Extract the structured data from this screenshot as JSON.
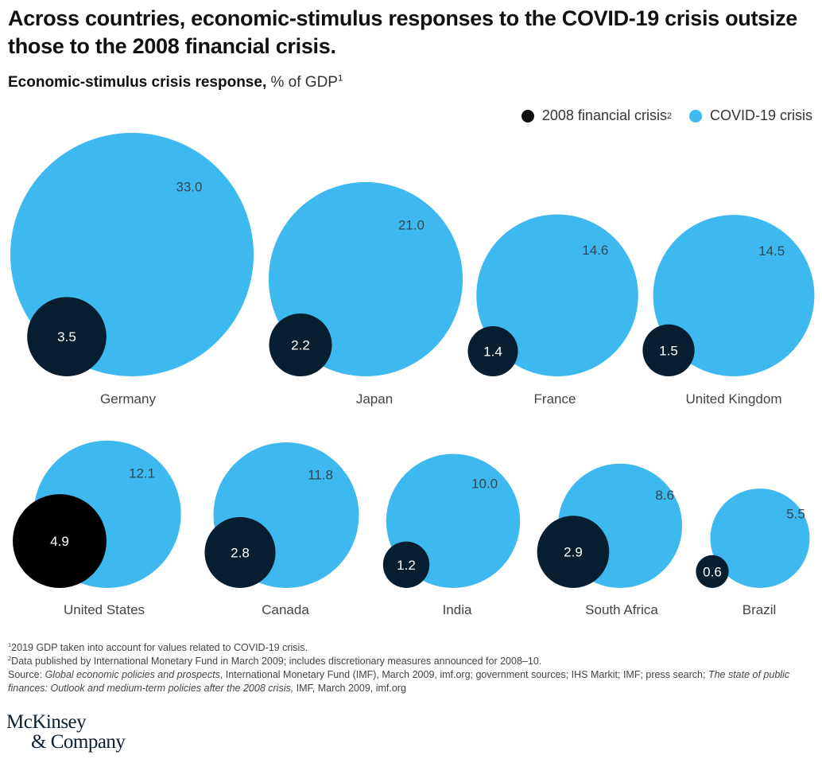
{
  "title": "Across countries, economic-stimulus responses to the COVID-19 crisis outsize those to the 2008 financial crisis.",
  "subtitle": {
    "bold": "Economic-stimulus crisis response,",
    "unit": " % of GDP",
    "sup": "1"
  },
  "legend": [
    {
      "label": "2008 financial crisis",
      "sup": "2",
      "color": "#111111"
    },
    {
      "label": "COVID-19 crisis",
      "sup": "",
      "color": "#3DB9EF"
    }
  ],
  "colors": {
    "covid": "#3DB9EF",
    "crisis2008": "#061E2F",
    "crisis2008_highlight": "#000000",
    "value_text_covid": "#2f4858",
    "value_text_2008": "#ffffff",
    "country_text": "#444444"
  },
  "chart_data": {
    "type": "bubble",
    "title": "Economic-stimulus crisis response, % of GDP",
    "unit": "% of GDP",
    "legend_position": "top-right",
    "series": [
      {
        "name": "2008 financial crisis",
        "key": "crisis2008"
      },
      {
        "name": "COVID-19 crisis",
        "key": "covid"
      }
    ],
    "countries": [
      {
        "name": "Germany",
        "covid": 33.0,
        "crisis2008": 3.5,
        "covid_label": "33.0",
        "crisis2008_label": "3.5"
      },
      {
        "name": "Japan",
        "covid": 21.0,
        "crisis2008": 2.2,
        "covid_label": "21.0",
        "crisis2008_label": "2.2"
      },
      {
        "name": "France",
        "covid": 14.6,
        "crisis2008": 1.4,
        "covid_label": "14.6",
        "crisis2008_label": "1.4"
      },
      {
        "name": "United Kingdom",
        "covid": 14.5,
        "crisis2008": 1.5,
        "covid_label": "14.5",
        "crisis2008_label": "1.5"
      },
      {
        "name": "United States",
        "covid": 12.1,
        "crisis2008": 4.9,
        "covid_label": "12.1",
        "crisis2008_label": "4.9",
        "highlight": true
      },
      {
        "name": "Canada",
        "covid": 11.8,
        "crisis2008": 2.8,
        "covid_label": "11.8",
        "crisis2008_label": "2.8"
      },
      {
        "name": "India",
        "covid": 10.0,
        "crisis2008": 1.2,
        "covid_label": "10.0",
        "crisis2008_label": "1.2"
      },
      {
        "name": "South Africa",
        "covid": 8.6,
        "crisis2008": 2.9,
        "covid_label": "8.6",
        "crisis2008_label": "2.9"
      },
      {
        "name": "Brazil",
        "covid": 5.5,
        "crisis2008": 0.6,
        "covid_label": "5.5",
        "crisis2008_label": "0.6"
      }
    ]
  },
  "footnotes": {
    "note1": {
      "sup": "1",
      "text": "2019 GDP taken into account for values related to COVID-19 crisis."
    },
    "note2": {
      "sup": "2",
      "text": "Data published by International Monetary Fund in March 2009; includes discretionary measures announced for 2008–10."
    },
    "source": {
      "prefix": "Source: ",
      "italic1": "Global economic policies and prospects",
      "middle": ", International Monetary Fund (IMF), March 2009, imf.org; government sources; IHS Markit; IMF; press search; ",
      "italic2": "The state of public finances: Outlook and medium-term policies after the 2008 crisis,",
      "suffix": " IMF, March 2009, imf.org"
    }
  },
  "logo": {
    "line1": "McKinsey",
    "line2": "& Company"
  }
}
